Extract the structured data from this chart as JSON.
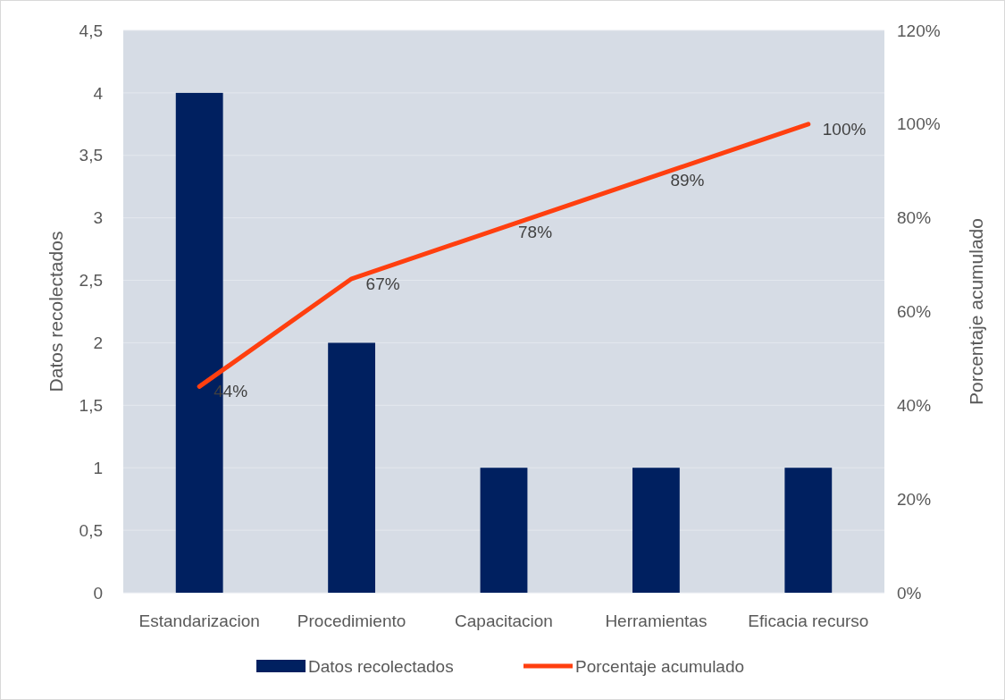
{
  "chart_data": {
    "type": "bar",
    "categories": [
      "Estandarizacion",
      "Procedimiento",
      "Capacitacion",
      "Herramientas",
      "Eficacia recurso"
    ],
    "series": [
      {
        "name": "Datos recolectados",
        "color": "#002060",
        "values": [
          4,
          2,
          1,
          1,
          1
        ]
      },
      {
        "name": "Porcentaje acumulado",
        "type": "line",
        "axis": "y2",
        "color": "#ff3f0f",
        "values": [
          44,
          67,
          78,
          89,
          100
        ],
        "value_labels": [
          "44%",
          "67%",
          "78%",
          "89%",
          "100%"
        ]
      }
    ],
    "ylabel": "Datos recolectados",
    "y2label": "Porcentaje acumulado",
    "ylim": [
      0,
      4.5
    ],
    "yticks": [
      0,
      {
        "value": 0.5,
        "label": "0,5"
      },
      1,
      {
        "value": 1.5,
        "label": "1,5"
      },
      2,
      {
        "value": 2.5,
        "label": "2,5"
      },
      3,
      {
        "value": 3.5,
        "label": "3,5"
      },
      4,
      {
        "value": 4.5,
        "label": "4,5"
      }
    ],
    "y2lim": [
      0,
      120
    ],
    "y2ticks": [
      {
        "value": 0,
        "label": "0%"
      },
      {
        "value": 20,
        "label": "20%"
      },
      {
        "value": 40,
        "label": "40%"
      },
      {
        "value": 60,
        "label": "60%"
      },
      {
        "value": 80,
        "label": "80%"
      },
      {
        "value": 100,
        "label": "100%"
      },
      {
        "value": 120,
        "label": "120%"
      }
    ],
    "grid": "y",
    "legend": "bottom"
  }
}
